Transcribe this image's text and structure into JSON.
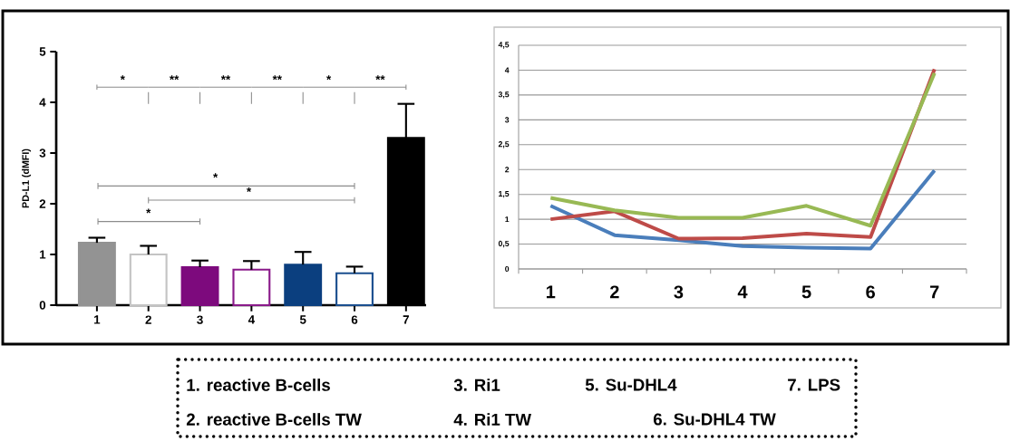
{
  "chart_data": [
    {
      "type": "bar",
      "ylabel": "PD-L1 (dMFI)",
      "categories": [
        "1",
        "2",
        "3",
        "4",
        "5",
        "6",
        "7"
      ],
      "values": [
        1.23,
        1.0,
        0.75,
        0.7,
        0.8,
        0.63,
        3.3
      ],
      "errors": [
        0.1,
        0.17,
        0.13,
        0.17,
        0.25,
        0.13,
        0.67
      ],
      "colors": [
        "#939393",
        "#c4c4c4",
        "#7d0a7d",
        "#8a1a8a",
        "#0b3f7f",
        "#1b4f8f",
        "#000000"
      ],
      "ylim": [
        0,
        5
      ],
      "yticks": [
        0,
        1,
        2,
        3,
        4,
        5
      ],
      "annotations": [
        "*",
        "**",
        "**",
        "**",
        "*",
        "**",
        "*",
        "*",
        "*"
      ]
    },
    {
      "type": "line",
      "categories": [
        "1",
        "2",
        "3",
        "4",
        "5",
        "6",
        "7"
      ],
      "series": [
        {
          "color": "#4a7ebb",
          "values": [
            1.27,
            0.68,
            0.58,
            0.46,
            0.43,
            0.41,
            1.98
          ]
        },
        {
          "color": "#be4b48",
          "values": [
            1.0,
            1.16,
            0.61,
            0.62,
            0.71,
            0.64,
            4.02
          ]
        },
        {
          "color": "#98b954",
          "values": [
            1.43,
            1.18,
            1.03,
            1.03,
            1.27,
            0.87,
            3.94
          ]
        }
      ],
      "ylim": [
        0,
        4.5
      ],
      "yticks": [
        0,
        {
          "value": 0.5,
          "label": "0,5"
        },
        1,
        {
          "value": 1.5,
          "label": "1,5"
        },
        2,
        {
          "value": 2.5,
          "label": "2,5"
        },
        3,
        {
          "value": 3.5,
          "label": "3,5"
        },
        4,
        {
          "value": 4.5,
          "label": "4,5"
        }
      ],
      "grid": "y"
    },
    {
      "type": "other",
      "annotations": [
        "1. reactive B-cells",
        "3. Ri1",
        "5. Su-DHL4",
        "7. LPS",
        "2. reactive B-cells TW",
        "4. Ri1 TW",
        "6. Su-DHL4 TW"
      ]
    }
  ]
}
